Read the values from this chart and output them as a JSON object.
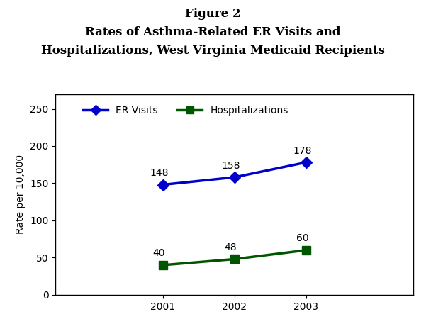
{
  "title_line1": "Figure 2",
  "title_line2": "Rates of Asthma-Related ER Visits and",
  "title_line3": "Hospitalizations, West Virginia Medicaid Recipients",
  "years": [
    2001,
    2002,
    2003
  ],
  "er_visits": [
    148,
    158,
    178
  ],
  "hospitalizations": [
    40,
    48,
    60
  ],
  "er_color": "#0000CC",
  "hosp_color": "#005500",
  "ylabel": "Rate per 10,000",
  "ylim": [
    0,
    270
  ],
  "yticks": [
    0,
    50,
    100,
    150,
    200,
    250
  ],
  "legend_er": "ER Visits",
  "legend_hosp": "Hospitalizations",
  "title_fontsize": 12,
  "axis_fontsize": 10,
  "annotation_fontsize": 10,
  "bg_color": "#ffffff",
  "plot_bg": "#ffffff"
}
